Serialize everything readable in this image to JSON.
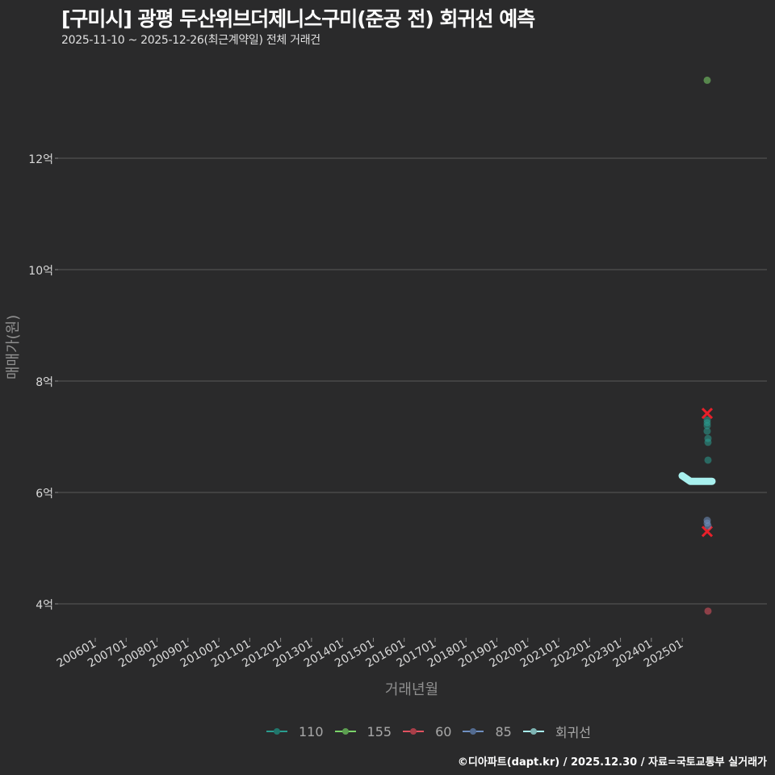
{
  "title": "[구미시] 광평 두산위브더제니스구미(준공 전) 회귀선 예측",
  "subtitle": "2025-11-10 ~ 2025-12-26(최근계약일) 전체 거래건",
  "footer": "©디아파트(dapt.kr) / 2025.12.30 / 자료=국토교통부 실거래가",
  "colors": {
    "background": "#2a2a2b",
    "grid": "#5a5a5a",
    "s110": "#2a9d8f",
    "s155": "#7bd36a",
    "s60": "#e05260",
    "s85": "#6f8fc0",
    "regression": "#a8f0ee"
  },
  "chart_data": {
    "type": "scatter",
    "title": "[구미시] 광평 두산위브더제니스구미(준공 전) 회귀선 예측",
    "subtitle": "2025-11-10 ~ 2025-12-26(최근계약일) 전체 거래건",
    "xlabel": "거래년월",
    "ylabel": "매매가(원)",
    "x_ticks": [
      "200601",
      "200701",
      "200801",
      "200901",
      "201001",
      "201101",
      "201201",
      "201301",
      "201401",
      "201501",
      "201601",
      "201701",
      "201801",
      "201901",
      "202001",
      "202101",
      "202201",
      "202301",
      "202401",
      "202501"
    ],
    "y_ticks": [
      "4억",
      "6억",
      "8억",
      "10억",
      "12억"
    ],
    "y_tick_values": [
      4,
      6,
      8,
      10,
      12
    ],
    "ylim": [
      3.5,
      13.7
    ],
    "grid": "horizontal major only",
    "legend_position": "bottom",
    "legend": [
      "110",
      "155",
      "60",
      "85",
      "회귀선"
    ],
    "series": [
      {
        "name": "110",
        "x": [
          "202511",
          "202511",
          "202511",
          "202511",
          "202512",
          "202512",
          "202512"
        ],
        "values": [
          7.3,
          7.25,
          7.2,
          7.1,
          6.97,
          6.9,
          6.58
        ]
      },
      {
        "name": "155",
        "x": [
          "202511"
        ],
        "values": [
          13.4
        ]
      },
      {
        "name": "60",
        "x": [
          "202512"
        ],
        "values": [
          3.87
        ],
        "x_marker_values_note": "highest/lowest 60 marked with X",
        "marked_x": [
          7.42,
          5.3
        ]
      },
      {
        "name": "85",
        "x": [
          "202511",
          "202511",
          "202512"
        ],
        "values": [
          5.5,
          5.45,
          5.4
        ]
      },
      {
        "name": "회귀선",
        "x": [
          "202510",
          "202511",
          "202512"
        ],
        "values": [
          6.3,
          6.2,
          6.2
        ]
      }
    ]
  },
  "legend_items": [
    {
      "label": "110",
      "color": "#2a9d8f"
    },
    {
      "label": "155",
      "color": "#7bd36a"
    },
    {
      "label": "60",
      "color": "#e05260"
    },
    {
      "label": "85",
      "color": "#6f8fc0"
    },
    {
      "label": "회귀선",
      "color": "#a8f0ee"
    }
  ]
}
